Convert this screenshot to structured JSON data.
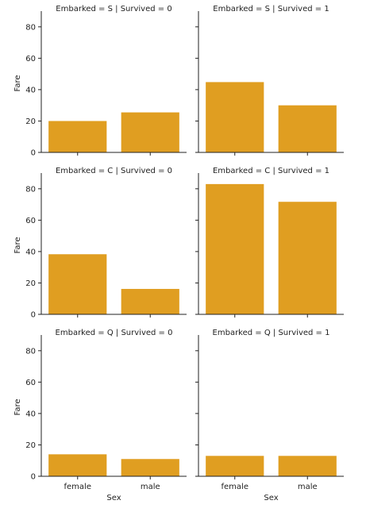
{
  "chart_data": {
    "type": "bar",
    "categories": [
      "female",
      "male"
    ],
    "xlabel": "Sex",
    "ylabel": "Fare",
    "ylim": [
      0,
      88
    ],
    "yticks": [
      0,
      20,
      40,
      60,
      80
    ],
    "bar_color": "#e09e21",
    "grid": false,
    "panels": [
      {
        "title": "Embarked = S | Survived = 0",
        "values": [
          20,
          25.5
        ]
      },
      {
        "title": "Embarked = S | Survived = 1",
        "values": [
          44.8,
          30
        ]
      },
      {
        "title": "Embarked = C | Survived = 0",
        "values": [
          38.3,
          16.2
        ]
      },
      {
        "title": "Embarked = C | Survived = 1",
        "values": [
          83,
          71.7
        ]
      },
      {
        "title": "Embarked = Q | Survived = 0",
        "values": [
          14,
          11
        ]
      },
      {
        "title": "Embarked = Q | Survived = 1",
        "values": [
          13,
          13
        ]
      }
    ]
  }
}
